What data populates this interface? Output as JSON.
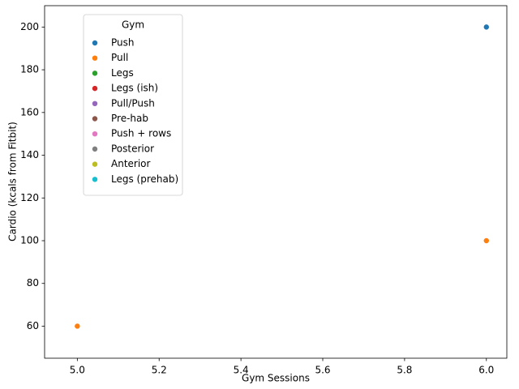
{
  "chart_data": {
    "type": "scatter",
    "x_label": "Gym Sessions",
    "y_label": "Cardio (kcals from Fitbit)",
    "legend_title": "Gym",
    "legend": "upper left",
    "series": [
      {
        "name": "Push",
        "color": "#1f77b4",
        "x": [
          6
        ],
        "values": [
          200
        ]
      },
      {
        "name": "Pull",
        "color": "#ff7f0e",
        "x": [
          6,
          5
        ],
        "values": [
          100,
          60
        ]
      },
      {
        "name": "Legs",
        "color": "#2ca02c",
        "x": [],
        "values": []
      },
      {
        "name": "Legs (ish)",
        "color": "#d62728",
        "x": [],
        "values": []
      },
      {
        "name": "Pull/Push",
        "color": "#9467bd",
        "x": [],
        "values": []
      },
      {
        "name": "Pre-hab",
        "color": "#8c564b",
        "x": [],
        "values": []
      },
      {
        "name": "Push + rows",
        "color": "#e377c2",
        "x": [],
        "values": []
      },
      {
        "name": "Posterior",
        "color": "#7f7f7f",
        "x": [],
        "values": []
      },
      {
        "name": "Anterior",
        "color": "#bcbd22",
        "x": [],
        "values": []
      },
      {
        "name": "Legs (prehab)",
        "color": "#17becf",
        "x": [],
        "values": []
      }
    ],
    "xlim": [
      4.92,
      6.05
    ],
    "xticks": [
      {
        "value": 5,
        "label": "5.0"
      },
      5.2,
      5.4,
      5.6,
      5.8,
      {
        "value": 6,
        "label": "6.0"
      }
    ],
    "ylim": [
      45,
      210
    ],
    "yticks": [
      60,
      80,
      100,
      120,
      140,
      160,
      180,
      200
    ],
    "grid": false
  }
}
